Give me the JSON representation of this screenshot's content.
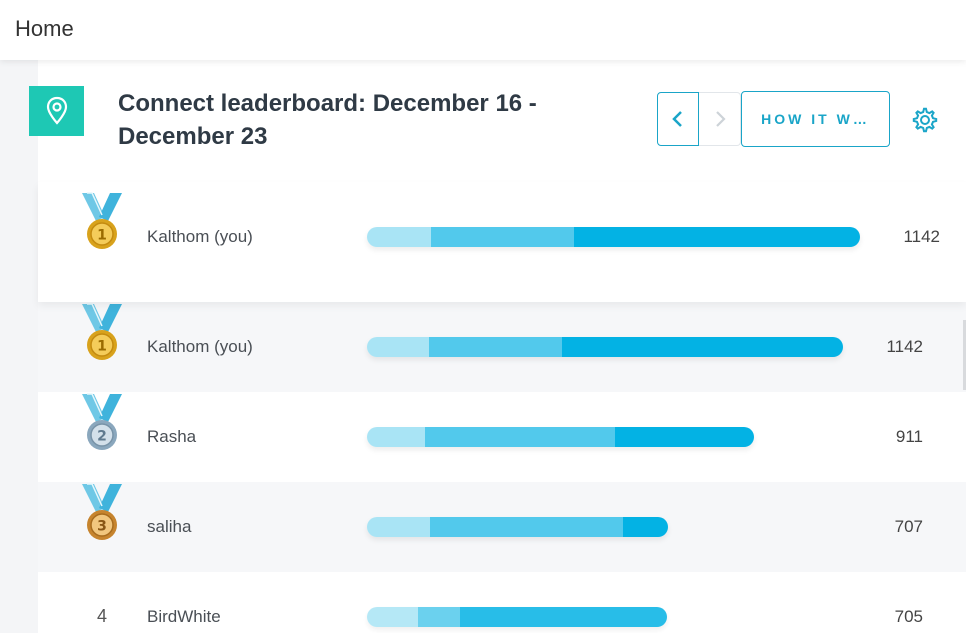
{
  "topbar": {
    "title": "Home"
  },
  "header": {
    "title": "Connect leaderboard: December 16 - December 23",
    "how_it_works_label": "HOW IT W…",
    "icons": {
      "location": "location-pin-icon",
      "settings": "gear-icon",
      "prev": "chevron-left-icon",
      "next": "chevron-right-icon"
    }
  },
  "colors": {
    "accent": "#1aa5c8",
    "badge": "#1ec8b4",
    "gold": "#d8a21c",
    "silver": "#8aa7bd",
    "bronze": "#c6842e",
    "bar_light": "#a9e4f5",
    "bar_mid": "#52c9ec",
    "bar_dark": "#03b2e4"
  },
  "current_user": {
    "rank": "1",
    "name": "Kalthom (you)",
    "score": "1142",
    "segments": [
      0.13,
      0.29,
      1.0
    ]
  },
  "leaderboard": [
    {
      "rank": "1",
      "medal": "gold",
      "name": "Kalthom (you)",
      "score": "1142",
      "segments": [
        0.13,
        0.29,
        1.0
      ]
    },
    {
      "rank": "2",
      "medal": "silver",
      "name": "Rasha",
      "score": "911",
      "segments": [
        0.07,
        0.31,
        0.49
      ]
    },
    {
      "rank": "3",
      "medal": "bronze",
      "name": "saliha",
      "score": "707",
      "segments": [
        0.13,
        0.31,
        0.38
      ]
    },
    {
      "rank": "4",
      "medal": "",
      "name": "BirdWhite",
      "score": "705",
      "segments": [
        0.1,
        0.2,
        0.38
      ]
    }
  ]
}
